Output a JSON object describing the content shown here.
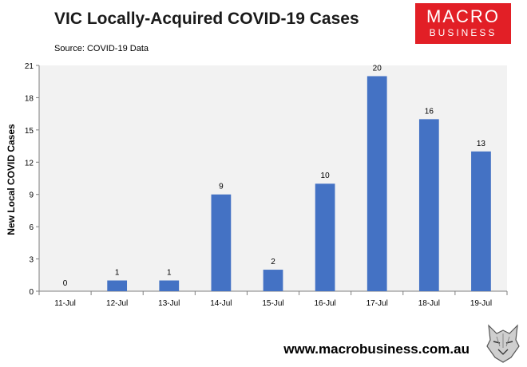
{
  "header": {
    "title": "VIC Locally-Acquired COVID-19 Cases",
    "subtitle": "Source: COVID-19 Data"
  },
  "logo": {
    "line1": "MACRO",
    "line2": "BUSINESS",
    "color": "#e21f26"
  },
  "footer": {
    "url": "www.macrobusiness.com.au",
    "logo_icon": "wolf-logo-icon"
  },
  "chart_data": {
    "type": "bar",
    "categories": [
      "11-Jul",
      "12-Jul",
      "13-Jul",
      "14-Jul",
      "15-Jul",
      "16-Jul",
      "17-Jul",
      "18-Jul",
      "19-Jul"
    ],
    "values": [
      0,
      1,
      1,
      9,
      2,
      10,
      20,
      16,
      13
    ],
    "data_labels": [
      "0",
      "1",
      "1",
      "9",
      "2",
      "10",
      "20",
      "16",
      "13"
    ],
    "ylabel": "New Local COVID Cases",
    "ylim": [
      0,
      21
    ],
    "yticks": [
      0,
      3,
      6,
      9,
      12,
      15,
      18,
      21
    ],
    "grid": false,
    "bar_color": "#4472c4",
    "plot_background": "#f2f2f2"
  }
}
